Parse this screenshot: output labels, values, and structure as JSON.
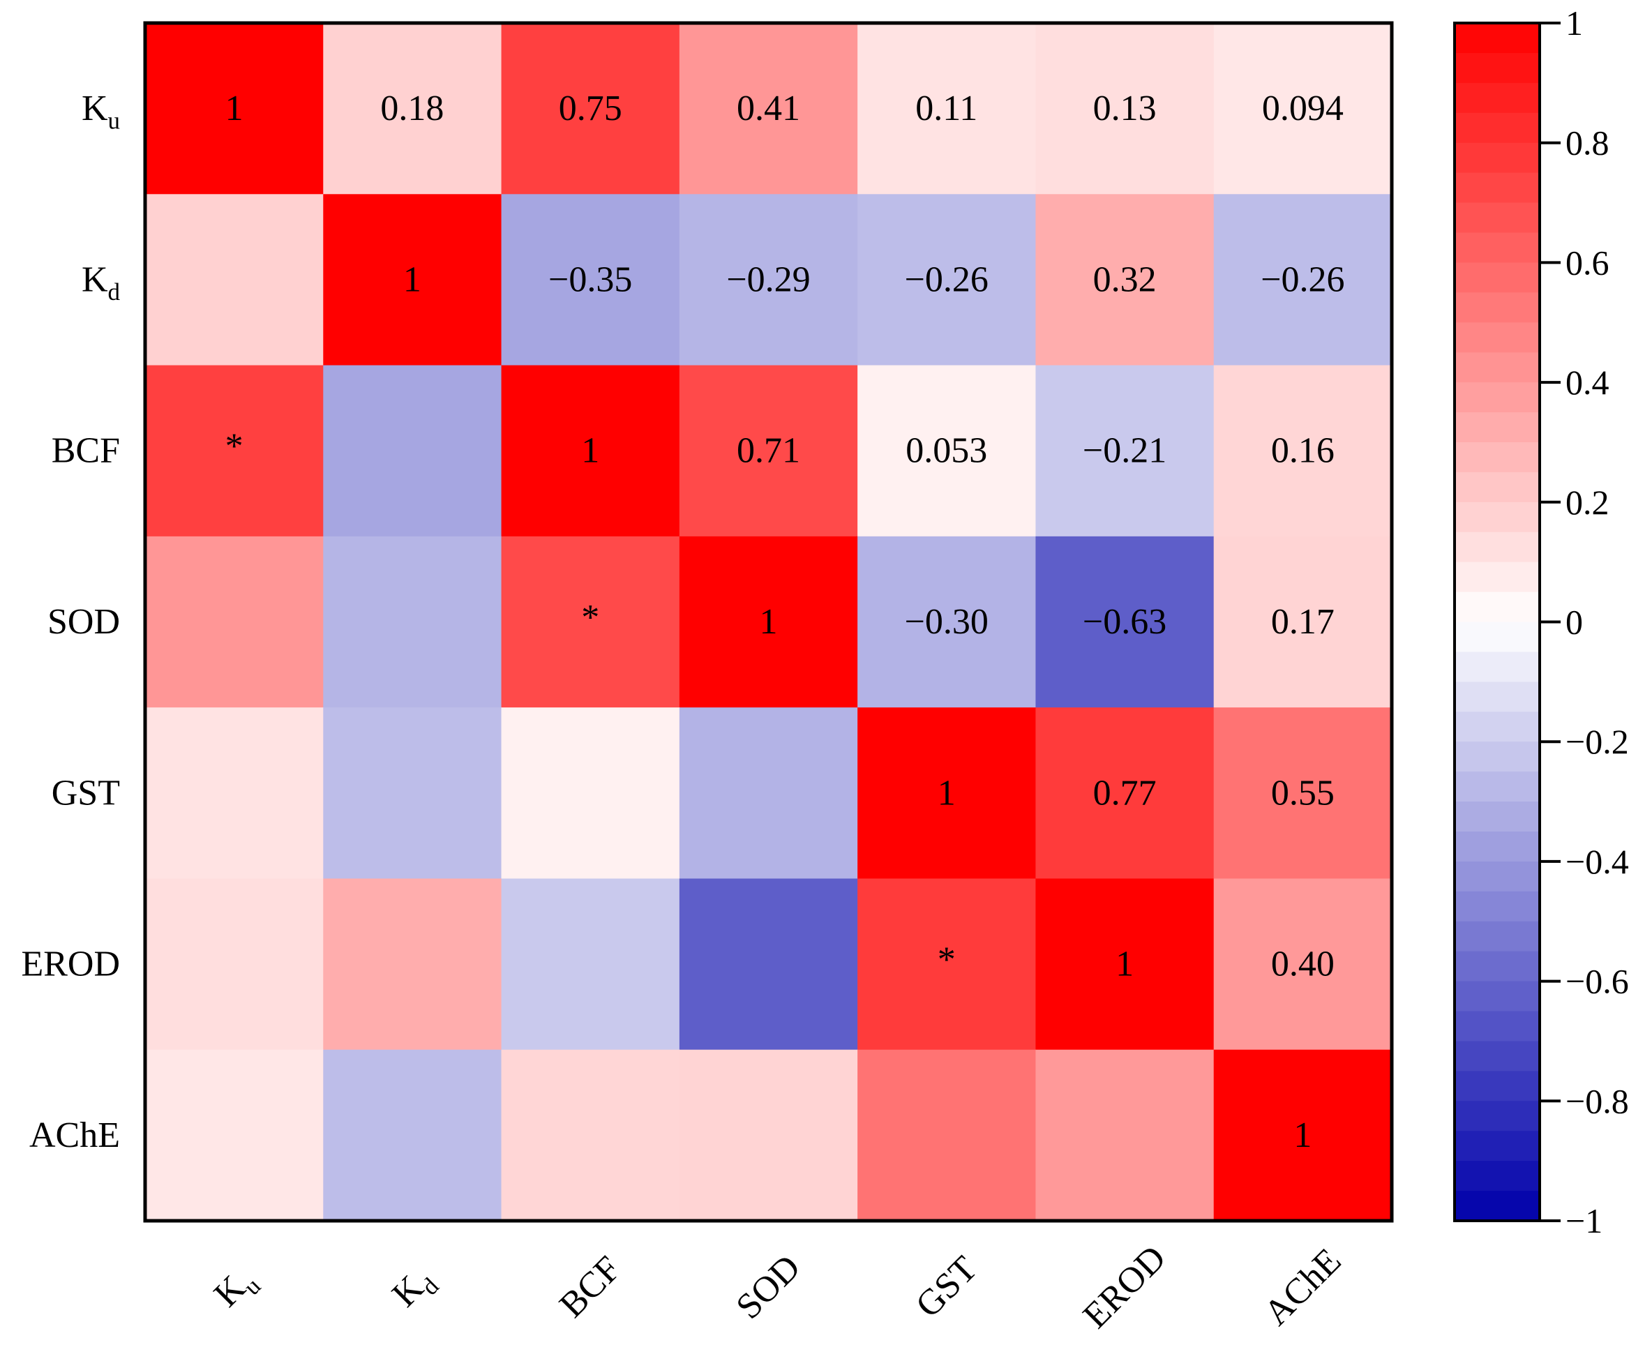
{
  "chart_data": {
    "type": "heatmap",
    "variables": [
      {
        "main": "K",
        "sub": "u"
      },
      {
        "main": "K",
        "sub": "d"
      },
      {
        "main": "BCF",
        "sub": ""
      },
      {
        "main": "SOD",
        "sub": ""
      },
      {
        "main": "GST",
        "sub": ""
      },
      {
        "main": "EROD",
        "sub": ""
      },
      {
        "main": "AChE",
        "sub": ""
      }
    ],
    "values": [
      [
        1,
        0.18,
        0.75,
        0.41,
        0.11,
        0.13,
        0.094
      ],
      [
        0.18,
        1,
        -0.35,
        -0.29,
        -0.26,
        0.32,
        -0.26
      ],
      [
        0.75,
        -0.35,
        1,
        0.71,
        0.053,
        -0.21,
        0.16
      ],
      [
        0.41,
        -0.29,
        0.71,
        1,
        -0.3,
        -0.63,
        0.17
      ],
      [
        0.11,
        -0.26,
        0.053,
        -0.3,
        1,
        0.77,
        0.55
      ],
      [
        0.13,
        0.32,
        -0.21,
        -0.63,
        0.77,
        1,
        0.4
      ],
      [
        0.094,
        -0.26,
        0.16,
        0.17,
        0.55,
        0.4,
        1
      ]
    ],
    "upper_labels": [
      [
        "1",
        "0.18",
        "0.75",
        "0.41",
        "0.11",
        "0.13",
        "0.094"
      ],
      [
        "",
        "1",
        "−0.35",
        "−0.29",
        "−0.26",
        "0.32",
        "−0.26"
      ],
      [
        "",
        "",
        "1",
        "0.71",
        "0.053",
        "−0.21",
        "0.16"
      ],
      [
        "",
        "",
        "",
        "1",
        "−0.30",
        "−0.63",
        "0.17"
      ],
      [
        "",
        "",
        "",
        "",
        "1",
        "0.77",
        "0.55"
      ],
      [
        "",
        "",
        "",
        "",
        "",
        "1",
        "0.40"
      ],
      [
        "",
        "",
        "",
        "",
        "",
        "",
        "1"
      ]
    ],
    "significance_marks": [
      {
        "row": 2,
        "col": 0,
        "mark": "*"
      },
      {
        "row": 3,
        "col": 2,
        "mark": "*"
      },
      {
        "row": 5,
        "col": 4,
        "mark": "*"
      }
    ],
    "colorbar": {
      "range": [
        -1,
        1
      ],
      "ticks": [
        1,
        0.8,
        0.6,
        0.4,
        0.2,
        0,
        -0.2,
        -0.4,
        -0.6,
        -0.8,
        -1
      ],
      "tick_labels": [
        "1",
        "0.8",
        "0.6",
        "0.4",
        "0.2",
        "0",
        "−0.2",
        "−0.4",
        "−0.6",
        "−0.8",
        "−1"
      ],
      "steps": 40
    },
    "colors": {
      "positive": "#ff0000",
      "negative": "#0000aa",
      "neutral": "#ffffff",
      "border": "#000000"
    },
    "xlabel": "",
    "ylabel": "",
    "title": ""
  }
}
